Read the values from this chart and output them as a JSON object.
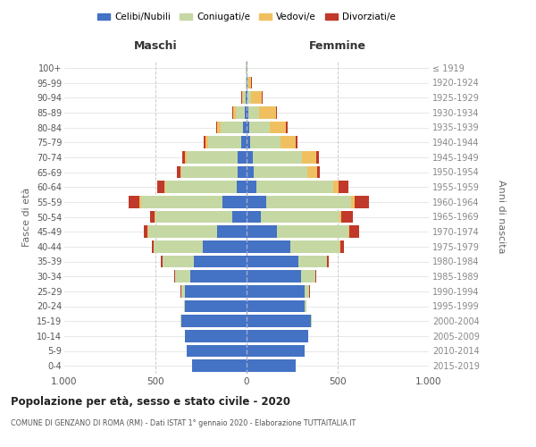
{
  "age_groups": [
    "0-4",
    "5-9",
    "10-14",
    "15-19",
    "20-24",
    "25-29",
    "30-34",
    "35-39",
    "40-44",
    "45-49",
    "50-54",
    "55-59",
    "60-64",
    "65-69",
    "70-74",
    "75-79",
    "80-84",
    "85-89",
    "90-94",
    "95-99",
    "100+"
  ],
  "birth_years": [
    "2015-2019",
    "2010-2014",
    "2005-2009",
    "2000-2004",
    "1995-1999",
    "1990-1994",
    "1985-1989",
    "1980-1984",
    "1975-1979",
    "1970-1974",
    "1965-1969",
    "1960-1964",
    "1955-1959",
    "1950-1954",
    "1945-1949",
    "1940-1944",
    "1935-1939",
    "1930-1934",
    "1925-1929",
    "1920-1924",
    "≤ 1919"
  ],
  "males_celibe": [
    300,
    330,
    340,
    360,
    340,
    340,
    310,
    290,
    240,
    160,
    80,
    130,
    55,
    50,
    50,
    30,
    20,
    10,
    5,
    2,
    2
  ],
  "males_coniugato": [
    0,
    0,
    0,
    2,
    5,
    20,
    80,
    170,
    270,
    380,
    420,
    450,
    390,
    310,
    280,
    180,
    120,
    50,
    15,
    3,
    1
  ],
  "males_vedovo": [
    0,
    0,
    0,
    0,
    0,
    0,
    0,
    1,
    2,
    3,
    5,
    10,
    5,
    5,
    10,
    15,
    20,
    15,
    5,
    0,
    0
  ],
  "males_divorziato": [
    0,
    0,
    0,
    0,
    0,
    2,
    5,
    8,
    10,
    20,
    25,
    55,
    40,
    15,
    15,
    8,
    5,
    5,
    2,
    0,
    0
  ],
  "fem_nubile": [
    270,
    320,
    340,
    355,
    320,
    320,
    300,
    285,
    240,
    165,
    80,
    110,
    55,
    40,
    35,
    20,
    15,
    10,
    5,
    5,
    2
  ],
  "fem_coniugata": [
    0,
    0,
    0,
    2,
    8,
    25,
    75,
    155,
    270,
    395,
    430,
    465,
    420,
    295,
    270,
    165,
    110,
    60,
    20,
    5,
    1
  ],
  "fem_vedova": [
    0,
    0,
    0,
    0,
    0,
    0,
    1,
    2,
    3,
    5,
    10,
    20,
    30,
    50,
    75,
    85,
    90,
    90,
    60,
    15,
    0
  ],
  "fem_divorziata": [
    0,
    0,
    0,
    0,
    0,
    2,
    8,
    10,
    20,
    55,
    65,
    75,
    55,
    15,
    15,
    10,
    10,
    5,
    5,
    2,
    0
  ],
  "color_celibe": "#4472c4",
  "color_coniugato": "#c5d8a4",
  "color_vedovo": "#f0c060",
  "color_divorziato": "#c0392b",
  "title_main": "Popolazione per età, sesso e stato civile - 2020",
  "title_sub": "COMUNE DI GENZANO DI ROMA (RM) - Dati ISTAT 1° gennaio 2020 - Elaborazione TUTTAITALIA.IT",
  "label_maschi": "Maschi",
  "label_femmine": "Femmine",
  "ylabel_left": "Fasce di età",
  "ylabel_right": "Anni di nascita",
  "xlim": 1000,
  "bg_color": "#ffffff",
  "legend_labels": [
    "Celibi/Nubili",
    "Coniugati/e",
    "Vedovi/e",
    "Divorziati/e"
  ]
}
